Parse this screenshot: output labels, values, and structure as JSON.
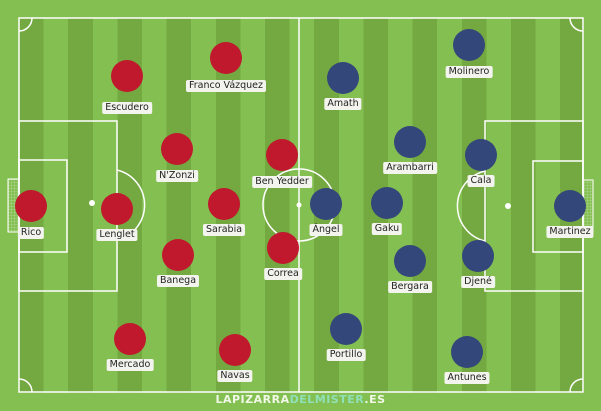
{
  "colors": {
    "home": "#c0182c",
    "away": "#34477a",
    "pitch_light": "#84bf52",
    "pitch_dark": "#73a940"
  },
  "home_players": [
    "Escudero",
    "Franco Vázquez",
    "N'Zonzi",
    "Ben Yedder",
    "Rico",
    "Lenglet",
    "Sarabia",
    "Banega",
    "Correa",
    "Mercado",
    "Navas"
  ],
  "away_players": [
    "Molinero",
    "Amath",
    "Arambarri",
    "Cala",
    "Ángel",
    "Gaku",
    "Martinez",
    "Bergara",
    "Djené",
    "Portillo",
    "Antunes"
  ],
  "brand": {
    "part1": "LAPIZARRA",
    "part2": "DELMISTER",
    "part3": ".ES"
  }
}
